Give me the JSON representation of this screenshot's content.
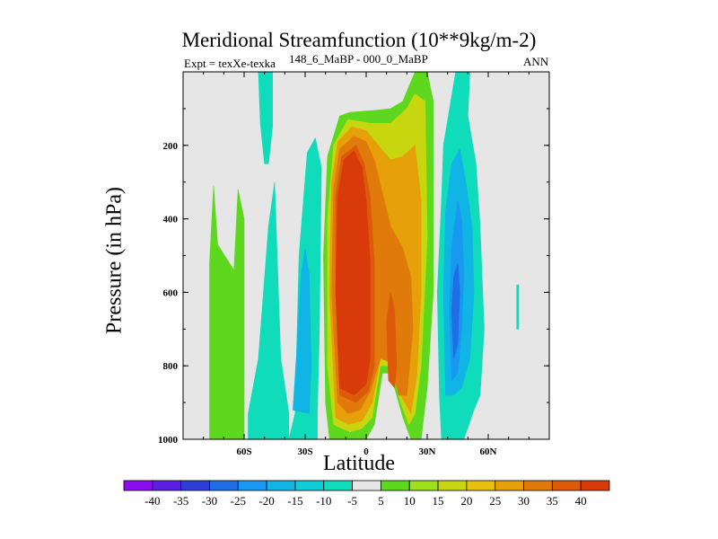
{
  "chart_data": {
    "type": "contour",
    "title": "Meridional Streamfunction (10**9kg/m-2)",
    "subtitle": "148_6_MaBP - 000_0_MaBP",
    "experiment": "Expt = texXe-texka",
    "season": "ANN",
    "xlabel": "Latitude",
    "ylabel": "Pressure (in hPa)",
    "xlim": [
      -90,
      90
    ],
    "ylim": [
      1000,
      0
    ],
    "x_ticks": [
      {
        "value": -60,
        "label": "60S"
      },
      {
        "value": -30,
        "label": "30S"
      },
      {
        "value": 0,
        "label": "0"
      },
      {
        "value": 30,
        "label": "30N"
      },
      {
        "value": 60,
        "label": "60N"
      }
    ],
    "y_ticks": [
      {
        "value": 200,
        "label": "200"
      },
      {
        "value": 400,
        "label": "400"
      },
      {
        "value": 600,
        "label": "600"
      },
      {
        "value": 800,
        "label": "800"
      },
      {
        "value": 1000,
        "label": "1000"
      }
    ],
    "background_color": "#e6e6e6",
    "colorbar": {
      "colors": [
        "#8a0df0",
        "#5a1fe0",
        "#2e3ed6",
        "#1f6ee6",
        "#1898f0",
        "#10b5e6",
        "#0ecdd6",
        "#10dcbc",
        "#e6e6e6",
        "#5ed81e",
        "#9ee01a",
        "#c8d610",
        "#e6c20c",
        "#e6a00a",
        "#e07a0a",
        "#dc5a0a",
        "#d83a0a"
      ],
      "labels": [
        "-40",
        "-35",
        "-30",
        "-25",
        "-20",
        "-15",
        "-10",
        "-5",
        "5",
        "10",
        "15",
        "20",
        "25",
        "30",
        "35",
        "40"
      ]
    },
    "regions": [
      {
        "name": "sh-polar-cell",
        "color": "#5ed81e",
        "points": [
          [
            -77,
            1000
          ],
          [
            -77,
            520
          ],
          [
            -75,
            310
          ],
          [
            -73,
            470
          ],
          [
            -65,
            540
          ],
          [
            -63,
            320
          ],
          [
            -60,
            400
          ],
          [
            -60,
            1000
          ]
        ]
      },
      {
        "name": "sh-ferrel-left",
        "color": "#10dcbc",
        "points": [
          [
            -58,
            1000
          ],
          [
            -58,
            930
          ],
          [
            -53,
            780
          ],
          [
            -48,
            420
          ],
          [
            -45,
            300
          ],
          [
            -42,
            780
          ],
          [
            -38,
            930
          ],
          [
            -38,
            1000
          ]
        ]
      },
      {
        "name": "sh-ferrel-right",
        "color": "#10dcbc",
        "points": [
          [
            -38,
            1000
          ],
          [
            -35,
            930
          ],
          [
            -33,
            500
          ],
          [
            -29,
            220
          ],
          [
            -25,
            180
          ],
          [
            -22,
            260
          ],
          [
            -23,
            700
          ],
          [
            -24,
            930
          ],
          [
            -24,
            1000
          ]
        ]
      },
      {
        "name": "upper-strip",
        "color": "#10dcbc",
        "points": [
          [
            -53,
            0
          ],
          [
            -46,
            0
          ],
          [
            -46,
            150
          ],
          [
            -48,
            250
          ],
          [
            -50,
            250
          ],
          [
            -52,
            140
          ]
        ]
      },
      {
        "name": "sh-ferrel-core",
        "color": "#10b5e6",
        "points": [
          [
            -36,
            920
          ],
          [
            -34,
            750
          ],
          [
            -32,
            550
          ],
          [
            -30,
            480
          ],
          [
            -28,
            550
          ],
          [
            -27,
            800
          ],
          [
            -28,
            930
          ]
        ]
      },
      {
        "name": "hadley-outer",
        "color": "#5ed81e",
        "points": [
          [
            -18,
            1000
          ],
          [
            -20,
            900
          ],
          [
            -21,
            500
          ],
          [
            -19,
            230
          ],
          [
            -13,
            120
          ],
          [
            -8,
            110
          ],
          [
            4,
            105
          ],
          [
            12,
            100
          ],
          [
            18,
            80
          ],
          [
            24,
            0
          ],
          [
            30,
            0
          ],
          [
            33,
            80
          ],
          [
            33,
            600
          ],
          [
            30,
            860
          ],
          [
            27,
            1000
          ],
          [
            22,
            1000
          ],
          [
            18,
            940
          ],
          [
            12,
            820
          ],
          [
            8,
            820
          ],
          [
            4,
            960
          ],
          [
            0,
            1000
          ],
          [
            -5,
            1000
          ],
          [
            -12,
            1000
          ]
        ]
      },
      {
        "name": "hadley-2",
        "color": "#c8d610",
        "points": [
          [
            -16,
            960
          ],
          [
            -19,
            800
          ],
          [
            -19,
            400
          ],
          [
            -16,
            200
          ],
          [
            -9,
            130
          ],
          [
            2,
            140
          ],
          [
            12,
            140
          ],
          [
            20,
            100
          ],
          [
            24,
            60
          ],
          [
            29,
            80
          ],
          [
            30,
            450
          ],
          [
            27,
            800
          ],
          [
            24,
            930
          ],
          [
            21,
            960
          ],
          [
            17,
            900
          ],
          [
            12,
            800
          ],
          [
            7,
            800
          ],
          [
            3,
            940
          ],
          [
            -2,
            970
          ],
          [
            -8,
            980
          ]
        ]
      },
      {
        "name": "hadley-3",
        "color": "#e6a00a",
        "points": [
          [
            -15,
            940
          ],
          [
            -18,
            600
          ],
          [
            -17,
            300
          ],
          [
            -14,
            190
          ],
          [
            -7,
            150
          ],
          [
            0,
            160
          ],
          [
            6,
            200
          ],
          [
            12,
            240
          ],
          [
            18,
            230
          ],
          [
            24,
            200
          ],
          [
            27,
            350
          ],
          [
            27,
            600
          ],
          [
            25,
            820
          ],
          [
            22,
            930
          ],
          [
            17,
            880
          ],
          [
            12,
            780
          ],
          [
            7,
            780
          ],
          [
            3,
            900
          ],
          [
            -2,
            950
          ],
          [
            -9,
            960
          ]
        ]
      },
      {
        "name": "hadley-4",
        "color": "#e07a0a",
        "points": [
          [
            -14,
            900
          ],
          [
            -17,
            600
          ],
          [
            -16,
            320
          ],
          [
            -13,
            210
          ],
          [
            -6,
            175
          ],
          [
            0,
            190
          ],
          [
            4,
            240
          ],
          [
            8,
            330
          ],
          [
            12,
            420
          ],
          [
            18,
            480
          ],
          [
            22,
            560
          ],
          [
            23,
            700
          ],
          [
            20,
            880
          ],
          [
            16,
            880
          ],
          [
            12,
            790
          ],
          [
            7,
            780
          ],
          [
            2,
            870
          ],
          [
            -3,
            920
          ],
          [
            -9,
            930
          ]
        ]
      },
      {
        "name": "hadley-5",
        "color": "#dc5a0a",
        "points": [
          [
            -13,
            880
          ],
          [
            -15,
            600
          ],
          [
            -15,
            340
          ],
          [
            -12,
            230
          ],
          [
            -5,
            200
          ],
          [
            -1,
            250
          ],
          [
            2,
            340
          ],
          [
            4,
            520
          ],
          [
            4,
            800
          ],
          [
            1,
            870
          ],
          [
            -5,
            900
          ]
        ]
      },
      {
        "name": "hadley-6",
        "color": "#dc5a0a",
        "points": [
          [
            11,
            840
          ],
          [
            10,
            680
          ],
          [
            12,
            600
          ],
          [
            14,
            650
          ],
          [
            15,
            800
          ],
          [
            14,
            860
          ]
        ]
      },
      {
        "name": "hadley-core",
        "color": "#d83a0a",
        "points": [
          [
            -13,
            860
          ],
          [
            -15,
            600
          ],
          [
            -14,
            340
          ],
          [
            -11,
            240
          ],
          [
            -6,
            215
          ],
          [
            -2,
            260
          ],
          [
            0,
            350
          ],
          [
            2,
            520
          ],
          [
            2,
            780
          ],
          [
            0,
            850
          ],
          [
            -6,
            880
          ]
        ]
      },
      {
        "name": "nh-ferrel-outer",
        "color": "#10dcbc",
        "points": [
          [
            37,
            1000
          ],
          [
            36,
            880
          ],
          [
            35,
            600
          ],
          [
            37,
            350
          ],
          [
            38,
            200
          ],
          [
            44,
            0
          ],
          [
            51,
            0
          ],
          [
            50,
            120
          ],
          [
            54,
            250
          ],
          [
            56,
            420
          ],
          [
            58,
            700
          ],
          [
            56,
            880
          ],
          [
            53,
            920
          ],
          [
            48,
            1000
          ],
          [
            42,
            1000
          ]
        ]
      },
      {
        "name": "nh-ferrel-mid",
        "color": "#10b5e6",
        "points": [
          [
            39,
            880
          ],
          [
            38,
            600
          ],
          [
            39,
            380
          ],
          [
            42,
            250
          ],
          [
            46,
            210
          ],
          [
            49,
            300
          ],
          [
            52,
            420
          ],
          [
            53,
            600
          ],
          [
            51,
            780
          ],
          [
            47,
            860
          ],
          [
            43,
            880
          ]
        ]
      },
      {
        "name": "nh-ferrel-core",
        "color": "#1898f0",
        "points": [
          [
            42,
            840
          ],
          [
            41,
            650
          ],
          [
            42,
            480
          ],
          [
            45,
            350
          ],
          [
            47,
            400
          ],
          [
            48,
            550
          ],
          [
            47,
            700
          ],
          [
            45,
            820
          ]
        ]
      },
      {
        "name": "nh-ferrel-deep",
        "color": "#1f6ee6",
        "points": [
          [
            43,
            780
          ],
          [
            42,
            650
          ],
          [
            43,
            560
          ],
          [
            45,
            520
          ],
          [
            46,
            600
          ],
          [
            45,
            740
          ]
        ]
      },
      {
        "name": "far-north-sliver",
        "color": "#10dcbc",
        "points": [
          [
            74,
            580
          ],
          [
            75,
            580
          ],
          [
            75,
            700
          ],
          [
            74,
            700
          ]
        ]
      }
    ]
  }
}
